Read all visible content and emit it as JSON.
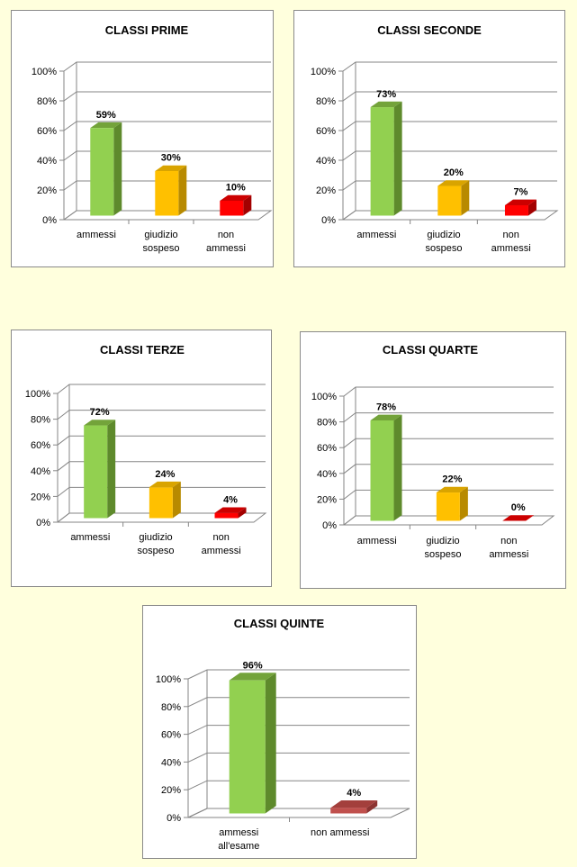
{
  "colors": {
    "green_front": "#92D050",
    "green_side": "#5E8A2C",
    "green_top": "#73A33A",
    "yellow_front": "#FFC000",
    "yellow_side": "#B88A00",
    "yellow_top": "#D9A400",
    "red_front": "#FF0000",
    "red_side": "#A30000",
    "red_top": "#CC0000",
    "brick_front": "#C0504D",
    "brick_side": "#8C3331",
    "brick_top": "#A33F3C"
  },
  "chart_data": [
    {
      "type": "bar",
      "title": "CLASSI PRIME",
      "yticks": [
        "0%",
        "20%",
        "40%",
        "60%",
        "80%",
        "100%"
      ],
      "ylim": [
        0,
        100
      ],
      "categories": [
        [
          "ammessi"
        ],
        [
          "giudizio",
          "sospeso"
        ],
        [
          "non",
          "ammessi"
        ]
      ],
      "values": [
        59,
        30,
        10
      ],
      "labels": [
        "59%",
        "30%",
        "10%"
      ],
      "colors": [
        "green",
        "yellow",
        "red"
      ]
    },
    {
      "type": "bar",
      "title": "CLASSI SECONDE",
      "yticks": [
        "0%",
        "20%",
        "40%",
        "60%",
        "80%",
        "100%"
      ],
      "ylim": [
        0,
        100
      ],
      "categories": [
        [
          "ammessi"
        ],
        [
          "giudizio",
          "sospeso"
        ],
        [
          "non",
          "ammessi"
        ]
      ],
      "values": [
        73,
        20,
        7
      ],
      "labels": [
        "73%",
        "20%",
        "7%"
      ],
      "colors": [
        "green",
        "yellow",
        "red"
      ]
    },
    {
      "type": "bar",
      "title": "CLASSI TERZE",
      "yticks": [
        "0%",
        "20%",
        "40%",
        "60%",
        "80%",
        "100%"
      ],
      "ylim": [
        0,
        100
      ],
      "categories": [
        [
          "ammessi"
        ],
        [
          "giudizio",
          "sospeso"
        ],
        [
          "non",
          "ammessi"
        ]
      ],
      "values": [
        72,
        24,
        4
      ],
      "labels": [
        "72%",
        "24%",
        "4%"
      ],
      "colors": [
        "green",
        "yellow",
        "red"
      ]
    },
    {
      "type": "bar",
      "title": "CLASSI QUARTE",
      "yticks": [
        "0%",
        "20%",
        "40%",
        "60%",
        "80%",
        "100%"
      ],
      "ylim": [
        0,
        100
      ],
      "categories": [
        [
          "ammessi"
        ],
        [
          "giudizio",
          "sospeso"
        ],
        [
          "non",
          "ammessi"
        ]
      ],
      "values": [
        78,
        22,
        0
      ],
      "labels": [
        "78%",
        "22%",
        "0%"
      ],
      "colors": [
        "green",
        "yellow",
        "red"
      ]
    },
    {
      "type": "bar",
      "title": "CLASSI QUINTE",
      "yticks": [
        "0%",
        "20%",
        "40%",
        "60%",
        "80%",
        "100%"
      ],
      "ylim": [
        0,
        100
      ],
      "categories": [
        [
          "ammessi",
          "all'esame"
        ],
        [
          "non ammessi"
        ]
      ],
      "values": [
        96,
        4
      ],
      "labels": [
        "96%",
        "4%"
      ],
      "colors": [
        "green",
        "brick"
      ]
    }
  ]
}
